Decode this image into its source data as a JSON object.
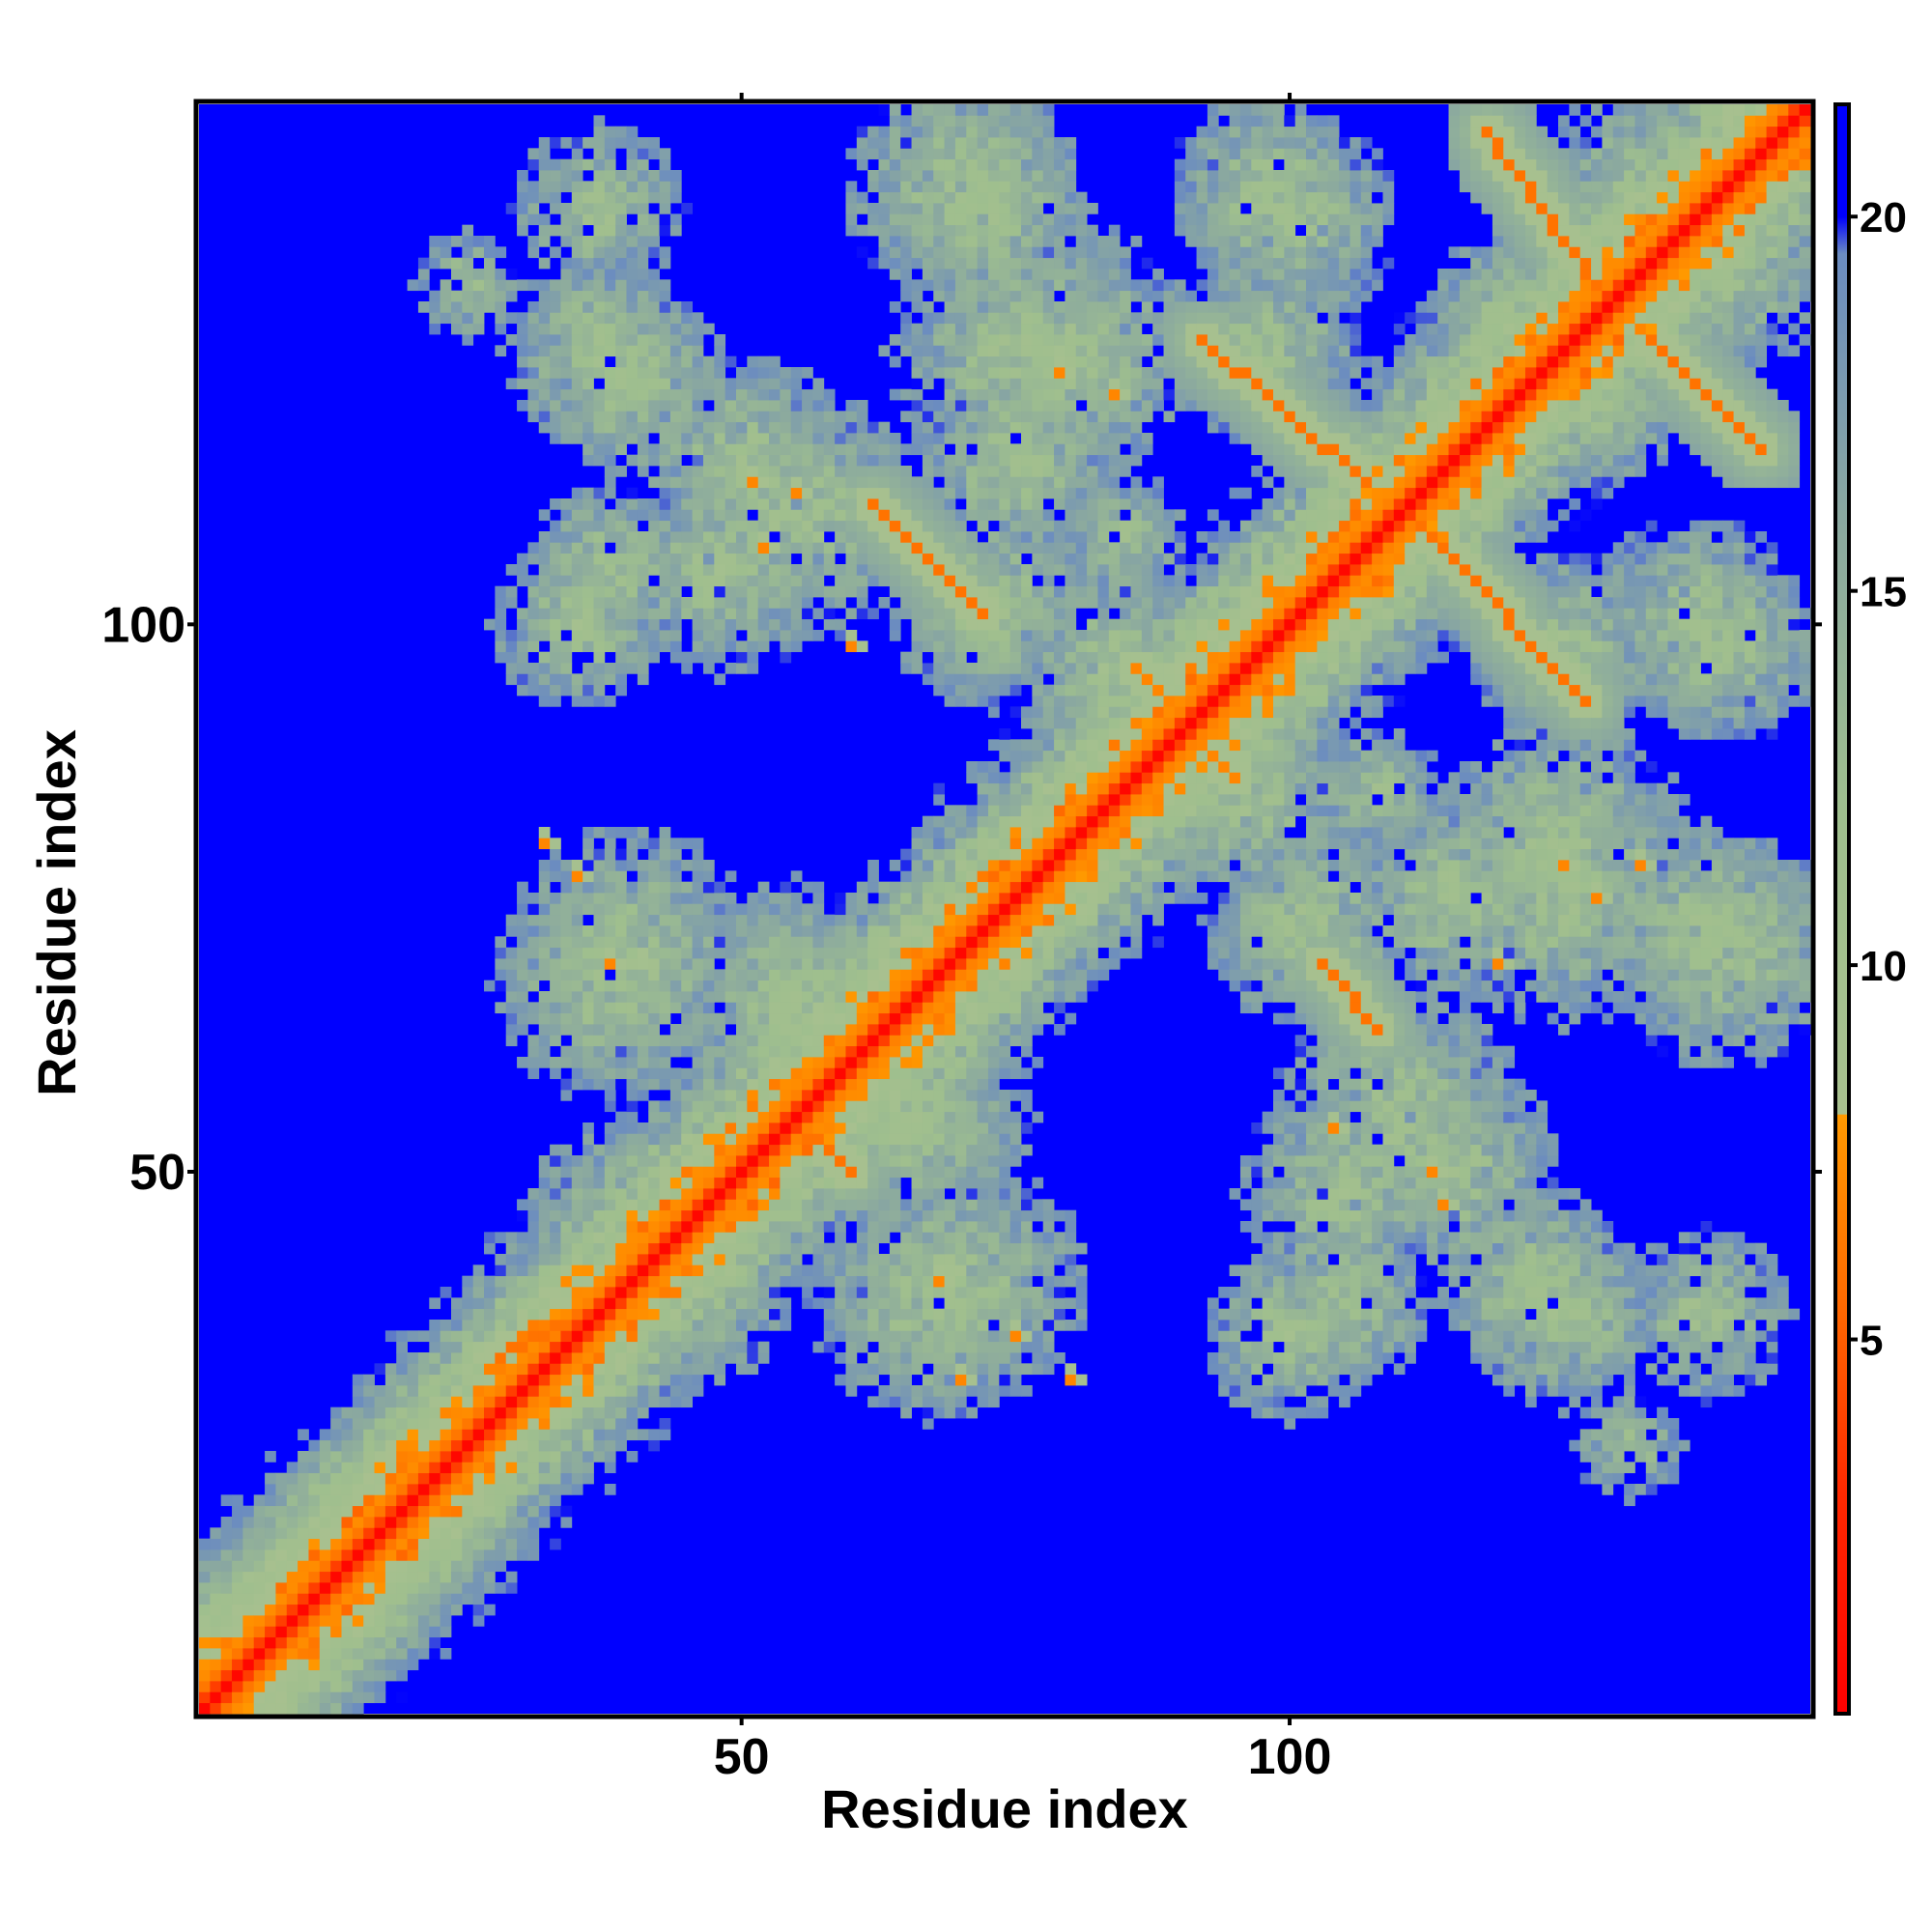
{
  "chart_data": {
    "type": "heatmap",
    "title": "",
    "xlabel": "Residue index",
    "ylabel": "Residue index",
    "xlim": [
      1,
      147
    ],
    "ylim": [
      1,
      147
    ],
    "xticks": [
      50,
      100
    ],
    "yticks": [
      50,
      100
    ],
    "colorbar": {
      "ticks": [
        5,
        10,
        15,
        20
      ],
      "range": [
        0,
        21.5
      ],
      "stops": [
        {
          "value": 0,
          "color": "#ff0000"
        },
        {
          "value": 3,
          "color": "#ff2a00"
        },
        {
          "value": 5.5,
          "color": "#ff6a00"
        },
        {
          "value": 8,
          "color": "#ff9900"
        },
        {
          "value": 8.01,
          "color": "#a8c08f"
        },
        {
          "value": 12,
          "color": "#9fbf8e"
        },
        {
          "value": 16,
          "color": "#8aa8a0"
        },
        {
          "value": 19.5,
          "color": "#6b8cc0"
        },
        {
          "value": 20,
          "color": "#0000ff"
        },
        {
          "value": 21.5,
          "color": "#0000ff"
        }
      ]
    },
    "background_color": "#0000ff",
    "cutoff": 20,
    "features": {
      "diagonal": {
        "from": 1,
        "to": 147
      },
      "contact_bands": [
        {
          "x": [
            62,
            72
          ],
          "y": [
            111,
            101
          ],
          "value": 6
        },
        {
          "x": [
            92,
            107
          ],
          "y": [
            126,
            113
          ],
          "value": 6
        },
        {
          "x": [
            103,
            108
          ],
          "y": [
            69,
            63
          ],
          "value": 6
        },
        {
          "x": [
            112,
            127
          ],
          "y": [
            109,
            93
          ],
          "value": 6
        },
        {
          "x": [
            118,
            128
          ],
          "y": [
            145,
            131
          ],
          "value": 6
        },
        {
          "x": [
            133,
            143
          ],
          "y": [
            126,
            116
          ],
          "value": 6
        },
        {
          "x": [
            28,
            38
          ],
          "y": [
            33,
            38
          ],
          "value": 6
        },
        {
          "x": [
            54,
            60
          ],
          "y": [
            55,
            50
          ],
          "value": 6
        },
        {
          "x": [
            86,
            95
          ],
          "y": [
            96,
            86
          ],
          "value": 7
        }
      ],
      "contact_spots": [
        {
          "x": 68,
          "y": 40
        },
        {
          "x": 75,
          "y": 35
        },
        {
          "x": 80,
          "y": 31
        },
        {
          "x": 70,
          "y": 31
        },
        {
          "x": 38,
          "y": 69
        },
        {
          "x": 32,
          "y": 80
        },
        {
          "x": 35,
          "y": 77
        },
        {
          "x": 51,
          "y": 113
        },
        {
          "x": 55,
          "y": 112
        },
        {
          "x": 52,
          "y": 107
        },
        {
          "x": 113,
          "y": 50
        },
        {
          "x": 114,
          "y": 47
        },
        {
          "x": 104,
          "y": 54
        },
        {
          "x": 93,
          "y": 88
        },
        {
          "x": 84,
          "y": 121
        },
        {
          "x": 79,
          "y": 123
        },
        {
          "x": 125,
          "y": 78
        },
        {
          "x": 132,
          "y": 78
        },
        {
          "x": 128,
          "y": 75
        },
        {
          "x": 119,
          "y": 69
        },
        {
          "x": 41,
          "y": 45
        },
        {
          "x": 47,
          "y": 48
        },
        {
          "x": 86,
          "y": 91
        },
        {
          "x": 60,
          "y": 98
        }
      ],
      "neighborhood_clusters": [
        {
          "x": 70,
          "y": 140,
          "r": 11
        },
        {
          "x": 100,
          "y": 137,
          "r": 10
        },
        {
          "x": 133,
          "y": 140,
          "r": 10
        },
        {
          "x": 40,
          "y": 122,
          "r": 9
        },
        {
          "x": 55,
          "y": 110,
          "r": 12
        },
        {
          "x": 80,
          "y": 125,
          "r": 12
        },
        {
          "x": 35,
          "y": 100,
          "r": 8
        },
        {
          "x": 72,
          "y": 100,
          "r": 7
        },
        {
          "x": 85,
          "y": 90,
          "r": 9
        },
        {
          "x": 96,
          "y": 84,
          "r": 10
        },
        {
          "x": 40,
          "y": 70,
          "r": 12
        },
        {
          "x": 55,
          "y": 65,
          "r": 12
        },
        {
          "x": 65,
          "y": 55,
          "r": 10
        },
        {
          "x": 67,
          "y": 38,
          "r": 11
        },
        {
          "x": 45,
          "y": 40,
          "r": 10
        },
        {
          "x": 105,
          "y": 48,
          "r": 10
        },
        {
          "x": 115,
          "y": 50,
          "r": 10
        },
        {
          "x": 102,
          "y": 73,
          "r": 10
        },
        {
          "x": 115,
          "y": 75,
          "r": 10
        },
        {
          "x": 125,
          "y": 75,
          "r": 12
        },
        {
          "x": 138,
          "y": 72,
          "r": 10
        },
        {
          "x": 140,
          "y": 98,
          "r": 9
        },
        {
          "x": 125,
          "y": 98,
          "r": 9
        },
        {
          "x": 30,
          "y": 32,
          "r": 9
        },
        {
          "x": 105,
          "y": 38,
          "r": 8
        },
        {
          "x": 125,
          "y": 37,
          "r": 9
        },
        {
          "x": 138,
          "y": 37,
          "r": 8
        },
        {
          "x": 25,
          "y": 131,
          "r": 5
        },
        {
          "x": 37,
          "y": 127,
          "r": 6
        },
        {
          "x": 110,
          "y": 113,
          "r": 8
        },
        {
          "x": 120,
          "y": 128,
          "r": 8
        },
        {
          "x": 85,
          "y": 108,
          "r": 6
        }
      ]
    }
  }
}
